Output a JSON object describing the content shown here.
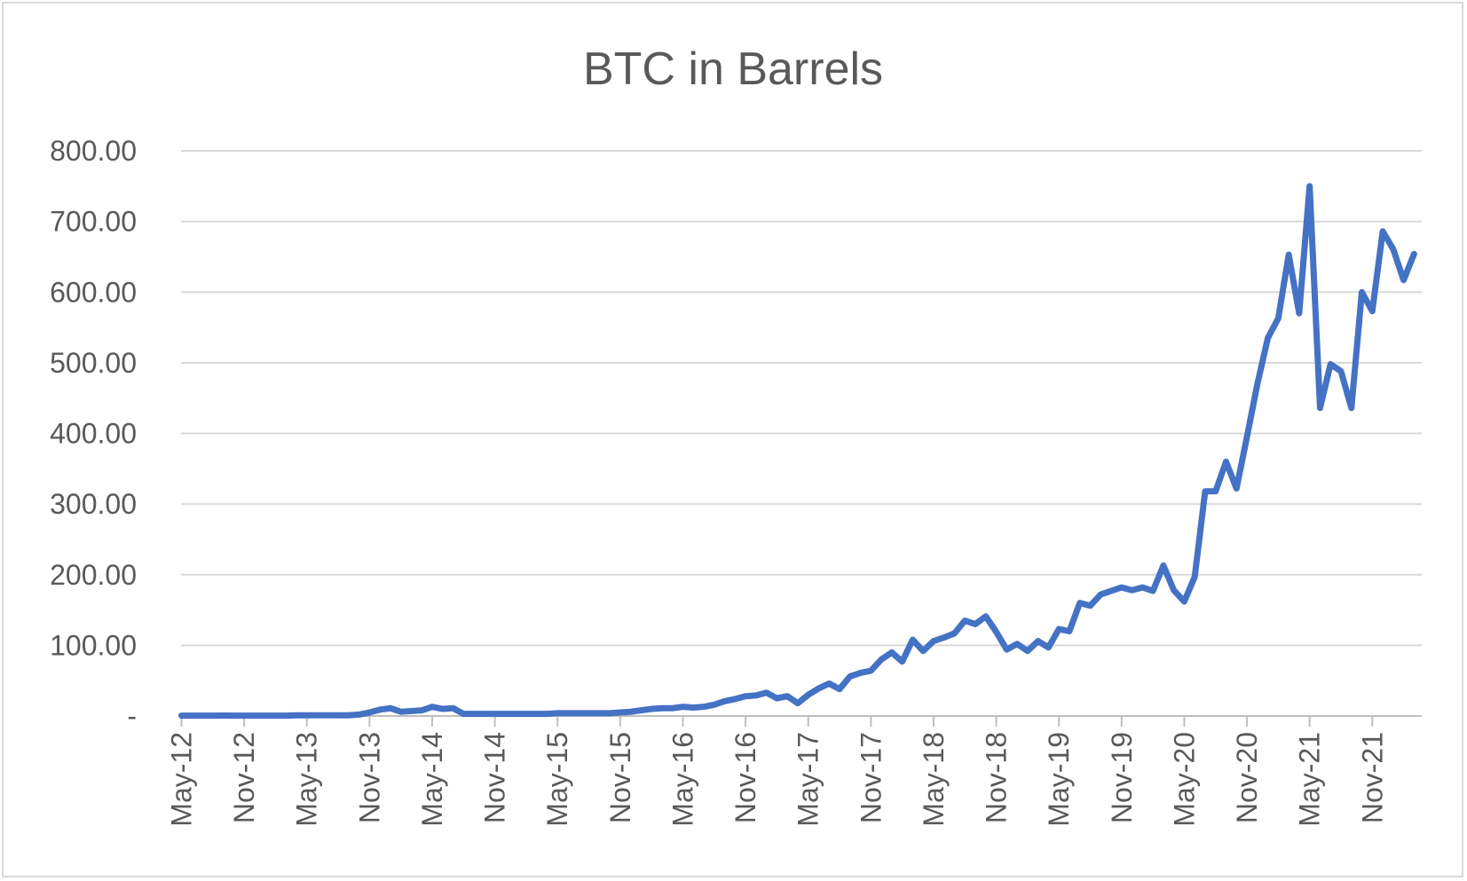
{
  "chart_data": {
    "type": "line",
    "title": "BTC in Barrels",
    "xlabel": "",
    "ylabel": "",
    "ylim": [
      0,
      800
    ],
    "y_ticks": [
      0,
      100,
      200,
      300,
      400,
      500,
      600,
      700,
      800
    ],
    "y_tick_labels": [
      "-",
      "100.00",
      "200.00",
      "300.00",
      "400.00",
      "500.00",
      "600.00",
      "700.00",
      "800.00"
    ],
    "x_tick_labels": [
      "May-12",
      "Nov-12",
      "May-13",
      "Nov-13",
      "May-14",
      "Nov-14",
      "May-15",
      "Nov-15",
      "May-16",
      "Nov-16",
      "May-17",
      "Nov-17",
      "May-18",
      "Nov-18",
      "May-19",
      "Nov-19",
      "May-20",
      "Nov-20",
      "May-21",
      "Nov-21"
    ],
    "x_start": "May-12",
    "x_end": "Mar-22",
    "grid": true,
    "legend": "none",
    "line_color": "#4472c4",
    "series": [
      {
        "values": [
          0.5,
          0.5,
          0.5,
          0.5,
          0.6,
          0.5,
          0.5,
          0.5,
          0.5,
          0.5,
          0.5,
          1.0,
          1.0,
          1.0,
          1.0,
          1.0,
          1.0,
          2.0,
          5.0,
          9.0,
          11.0,
          6.0,
          7.0,
          8.0,
          13.0,
          10.0,
          11.0,
          3.0,
          3.0,
          3.0,
          3.0,
          3.0,
          3.0,
          3.0,
          3.0,
          3.0,
          4.0,
          4.0,
          4.0,
          4.0,
          4.0,
          4.0,
          5.0,
          6.0,
          8.0,
          10.0,
          11.0,
          11.0,
          13.0,
          12.0,
          13.0,
          16.0,
          21.0,
          24.0,
          28.0,
          29.0,
          33.0,
          25.0,
          28.0,
          18.0,
          30.0,
          39.0,
          46.0,
          38.0,
          56.0,
          61.0,
          64.0,
          80.0,
          90.0,
          77.0,
          108.0,
          92.0,
          106.0,
          111.0,
          117.0,
          135.0,
          130.0,
          141.0,
          119.0,
          94.0,
          102.0,
          92.0,
          106.0,
          97.0,
          123.0,
          120.0,
          160.0,
          156.0,
          172.0,
          177.0,
          182.0,
          178.0,
          182.0,
          177.0,
          213.0,
          178.0,
          162.0,
          197.0,
          318.0,
          318.0,
          360.0,
          322.0,
          395.0,
          470.0,
          535.0,
          563.0,
          653.0,
          570.0,
          750.0,
          436.0,
          498.0,
          488.0,
          436.0,
          600.0,
          573.0,
          686.0,
          661.0,
          617.0,
          654.0
        ]
      }
    ]
  }
}
